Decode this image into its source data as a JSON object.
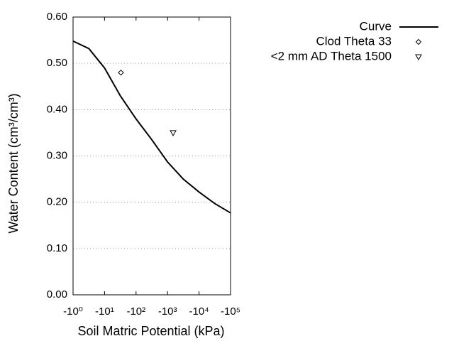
{
  "chart_data": {
    "type": "line",
    "x_label": "Soil Matric Potential (kPa)",
    "y_label": "Water Content (cm³/cm³)",
    "xscale": "log",
    "xlim": [
      -1,
      -100000
    ],
    "xticks": [
      {
        "value": -1,
        "label": "-10⁰"
      },
      {
        "value": -10,
        "label": "-10¹"
      },
      {
        "value": -100,
        "label": "-10²"
      },
      {
        "value": -1000,
        "label": "-10³"
      },
      {
        "value": -10000,
        "label": "-10⁴"
      },
      {
        "value": -100000,
        "label": "-10⁵"
      }
    ],
    "ylim": [
      0,
      0.6
    ],
    "yticks": [
      {
        "value": 0,
        "label": "0.00"
      },
      {
        "value": 0.1,
        "label": "0.10"
      },
      {
        "value": 0.2,
        "label": "0.20"
      },
      {
        "value": 0.3,
        "label": "0.30"
      },
      {
        "value": 0.4,
        "label": "0.40"
      },
      {
        "value": 0.5,
        "label": "0.50"
      },
      {
        "value": 0.6,
        "label": "0.60"
      }
    ],
    "grid": true,
    "legend": "top-right",
    "series": [
      {
        "name": "Curve",
        "color": "#000000",
        "marker": "none",
        "x": [
          -1,
          -3.16,
          -10,
          -31.6,
          -100,
          -316,
          -1000,
          -3162,
          -10000,
          -31623,
          -100000
        ],
        "values": [
          0.548,
          0.532,
          0.49,
          0.43,
          0.38,
          0.335,
          0.287,
          0.25,
          0.222,
          0.197,
          0.177
        ]
      },
      {
        "name": "Clod Theta 33",
        "color": "#000000",
        "marker": "diamond",
        "x": [
          -33
        ],
        "values": [
          0.48
        ]
      },
      {
        "name": "<2 mm AD Theta 1500",
        "color": "#000000",
        "marker": "triangle",
        "x": [
          -1500
        ],
        "values": [
          0.35
        ]
      }
    ]
  }
}
